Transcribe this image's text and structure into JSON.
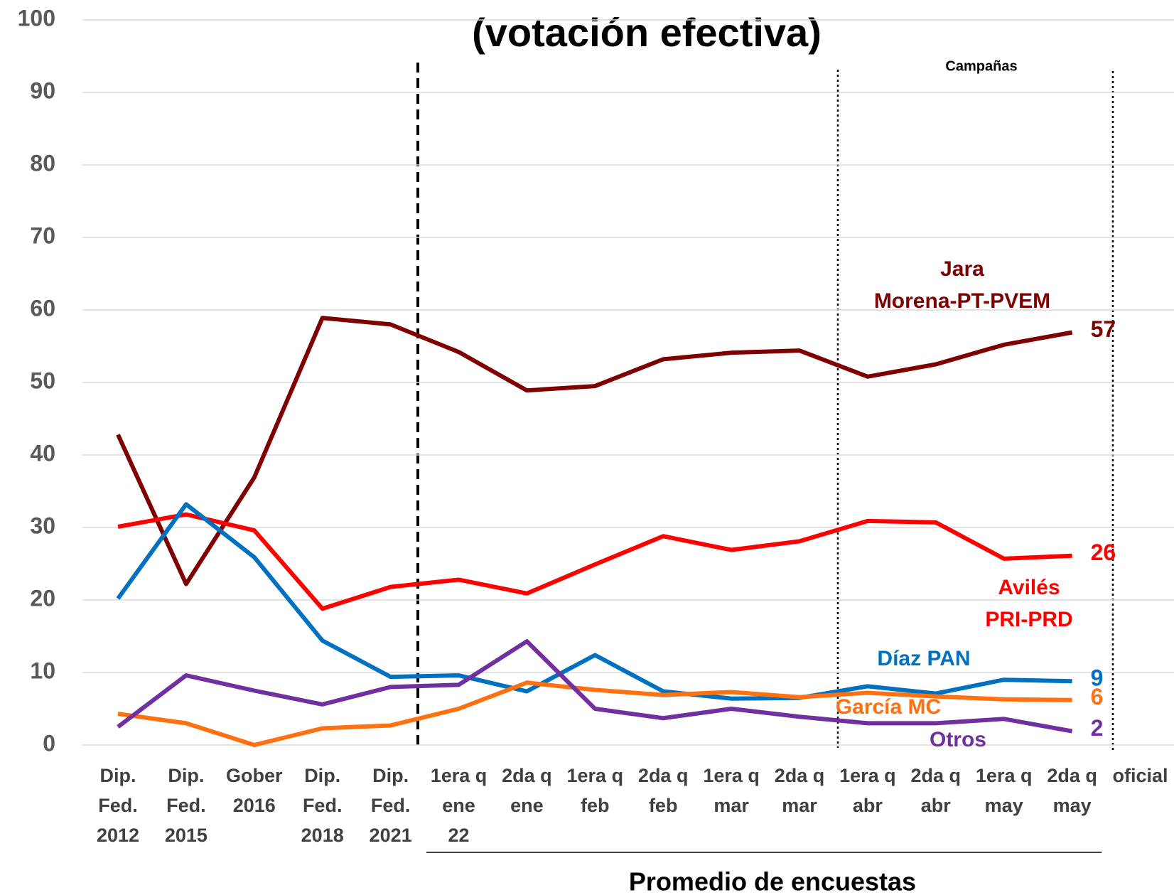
{
  "chart_data": {
    "type": "line",
    "title": "(votación efectiva)",
    "annotation": "Campañas",
    "x_group_label": "Promedio de encuestas",
    "categories": [
      "Dip.\nFed.\n2012",
      "Dip.\nFed.\n2015",
      "Gober\n2016",
      "Dip.\nFed.\n2018",
      "Dip.\nFed.\n2021",
      "1era q\nene\n22",
      "2da q\nene",
      "1era q\nfeb",
      "2da q\nfeb",
      "1era q\nmar",
      "2da q\nmar",
      "1era q\nabr",
      "2da q\nabr",
      "1era q\nmay",
      "2da q\nmay",
      "oficial"
    ],
    "ylim": [
      0,
      100
    ],
    "yticks": [
      0,
      10,
      20,
      30,
      40,
      50,
      60,
      70,
      80,
      90,
      100
    ],
    "grid": true,
    "series": [
      {
        "name": "Jara\nMorena-PT-PVEM",
        "color": "#7f0000",
        "values": [
          42.8,
          22.2,
          36.9,
          58.9,
          58,
          54.2,
          48.9,
          49.5,
          53.2,
          54.1,
          54.4,
          50.8,
          52.5,
          55.2,
          56.9,
          null
        ],
        "value_labels": [
          null,
          null,
          null,
          null,
          null,
          null,
          null,
          null,
          null,
          null,
          null,
          null,
          null,
          null,
          "57",
          null
        ]
      },
      {
        "name": "Avilés\nPRI-PRD",
        "color": "#ff0000",
        "values": [
          30.1,
          31.8,
          29.6,
          18.8,
          21.8,
          22.8,
          20.9,
          24.9,
          28.8,
          26.9,
          28.1,
          30.9,
          30.7,
          25.7,
          26.1,
          null
        ],
        "value_labels": [
          null,
          null,
          null,
          null,
          null,
          null,
          null,
          null,
          null,
          null,
          null,
          null,
          null,
          null,
          "26",
          null
        ]
      },
      {
        "name": "Díaz PAN",
        "color": "#0070c0",
        "values": [
          20.2,
          33.2,
          25.9,
          14.4,
          9.4,
          9.6,
          7.4,
          12.4,
          7.4,
          6.4,
          6.5,
          8.1,
          7.1,
          9.0,
          8.8,
          null
        ],
        "value_labels": [
          null,
          null,
          null,
          null,
          null,
          null,
          null,
          null,
          null,
          null,
          null,
          null,
          null,
          null,
          "9",
          null
        ]
      },
      {
        "name": "García MC",
        "color": "#ff7010",
        "values": [
          4.3,
          3.0,
          0,
          2.3,
          2.7,
          5.0,
          8.6,
          7.6,
          6.9,
          7.3,
          6.6,
          7.2,
          6.7,
          6.3,
          6.2,
          null
        ],
        "value_labels": [
          null,
          null,
          null,
          null,
          null,
          null,
          null,
          null,
          null,
          null,
          null,
          null,
          null,
          null,
          "6",
          null
        ]
      },
      {
        "name": "Otros",
        "color": "#7030a0",
        "values": [
          2.5,
          9.6,
          7.5,
          5.6,
          8.0,
          8.3,
          14.3,
          5.0,
          3.7,
          5.0,
          3.9,
          3.0,
          3.0,
          3.6,
          1.9,
          null
        ],
        "value_labels": [
          null,
          null,
          null,
          null,
          null,
          null,
          null,
          null,
          null,
          null,
          null,
          null,
          null,
          null,
          "2",
          null
        ]
      }
    ]
  }
}
